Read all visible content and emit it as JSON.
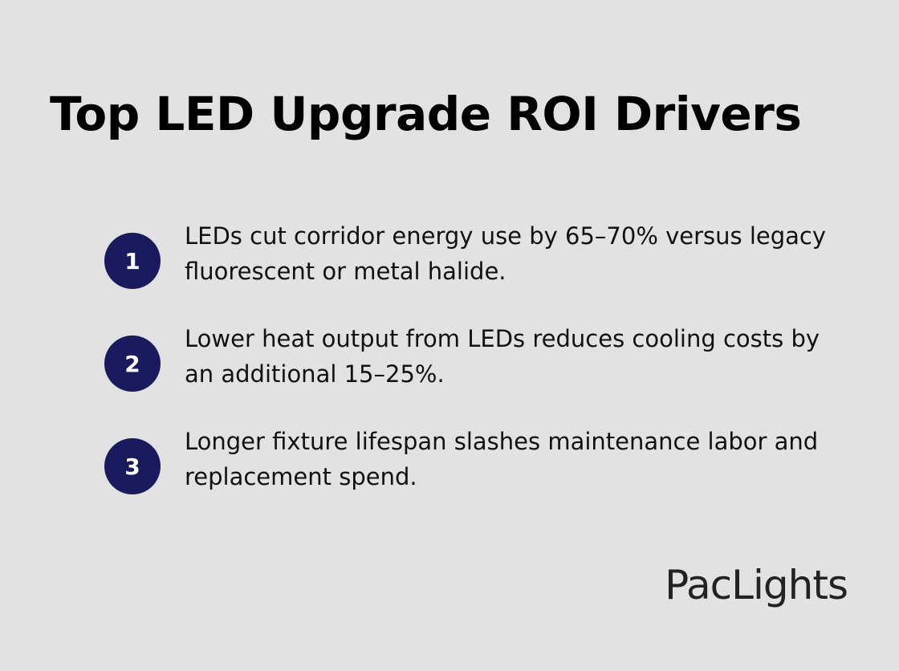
{
  "header": {
    "title": "Top LED Upgrade ROI Drivers"
  },
  "items": [
    {
      "number": "1",
      "text": "LEDs cut corridor energy use by 65–70% versus legacy fluorescent or metal halide."
    },
    {
      "number": "2",
      "text": "Lower heat output from LEDs reduces cooling costs by an additional 15–25%."
    },
    {
      "number": "3",
      "text": "Longer fixture lifespan slashes maintenance labor and replacement spend."
    }
  ],
  "footer": {
    "brand": "PacLights"
  }
}
